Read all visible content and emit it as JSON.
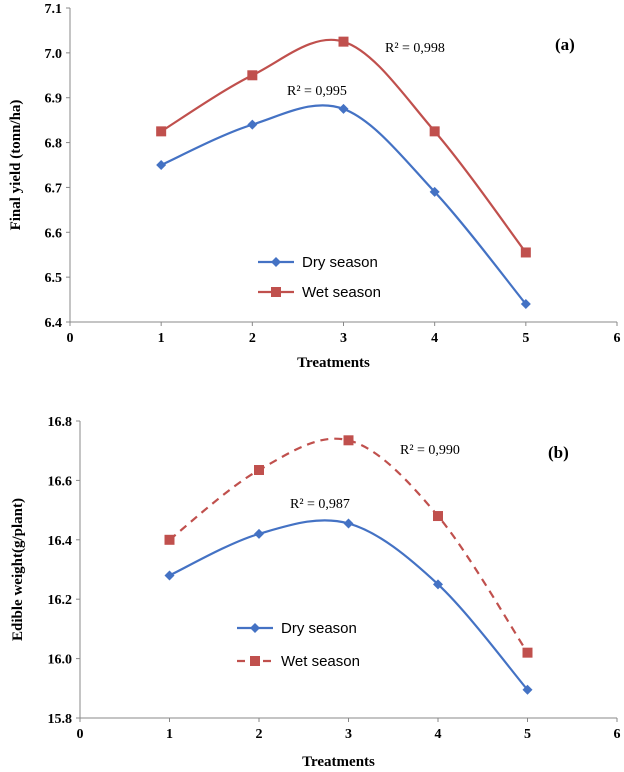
{
  "chart_data": [
    {
      "type": "line",
      "panel_label": "(a)",
      "xlabel": "Treatments",
      "ylabel": "Final yield (tonn/ha)",
      "xlim": [
        0,
        6
      ],
      "ylim": [
        6.4,
        7.1
      ],
      "xticks": [
        "0",
        "1",
        "2",
        "3",
        "4",
        "5",
        "6"
      ],
      "yticks": [
        "6.4",
        "6.5",
        "6.6",
        "6.7",
        "6.8",
        "6.9",
        "7.0",
        "7.1"
      ],
      "x": [
        1,
        2,
        3,
        4,
        5
      ],
      "series": [
        {
          "name": "Dry season",
          "values": [
            6.75,
            6.84,
            6.875,
            6.69,
            6.44
          ],
          "color": "#4472C4",
          "marker": "diamond",
          "dash": false,
          "r2": "R² = 0,995"
        },
        {
          "name": "Wet season",
          "values": [
            6.825,
            6.95,
            7.025,
            6.825,
            6.555
          ],
          "color": "#C0504D",
          "marker": "square",
          "dash": false,
          "r2": "R² = 0,998"
        }
      ],
      "legend": "center-left"
    },
    {
      "type": "line",
      "panel_label": "(b)",
      "xlabel": "Treatments",
      "ylabel": "Edible weight(g/plant)",
      "xlim": [
        0,
        6
      ],
      "ylim": [
        15.8,
        16.8
      ],
      "xticks": [
        "0",
        "1",
        "2",
        "3",
        "4",
        "5",
        "6"
      ],
      "yticks": [
        "15.8",
        "16.0",
        "16.2",
        "16.4",
        "16.6",
        "16.8"
      ],
      "x": [
        1,
        2,
        3,
        4,
        5
      ],
      "series": [
        {
          "name": "Dry season",
          "values": [
            16.28,
            16.42,
            16.455,
            16.25,
            15.895
          ],
          "color": "#4472C4",
          "marker": "diamond",
          "dash": false,
          "r2": "R² = 0,987"
        },
        {
          "name": "Wet season",
          "values": [
            16.4,
            16.635,
            16.735,
            16.48,
            16.02
          ],
          "color": "#C0504D",
          "marker": "square",
          "dash": true,
          "r2": "R² = 0,990"
        }
      ],
      "legend": "center-left"
    }
  ]
}
